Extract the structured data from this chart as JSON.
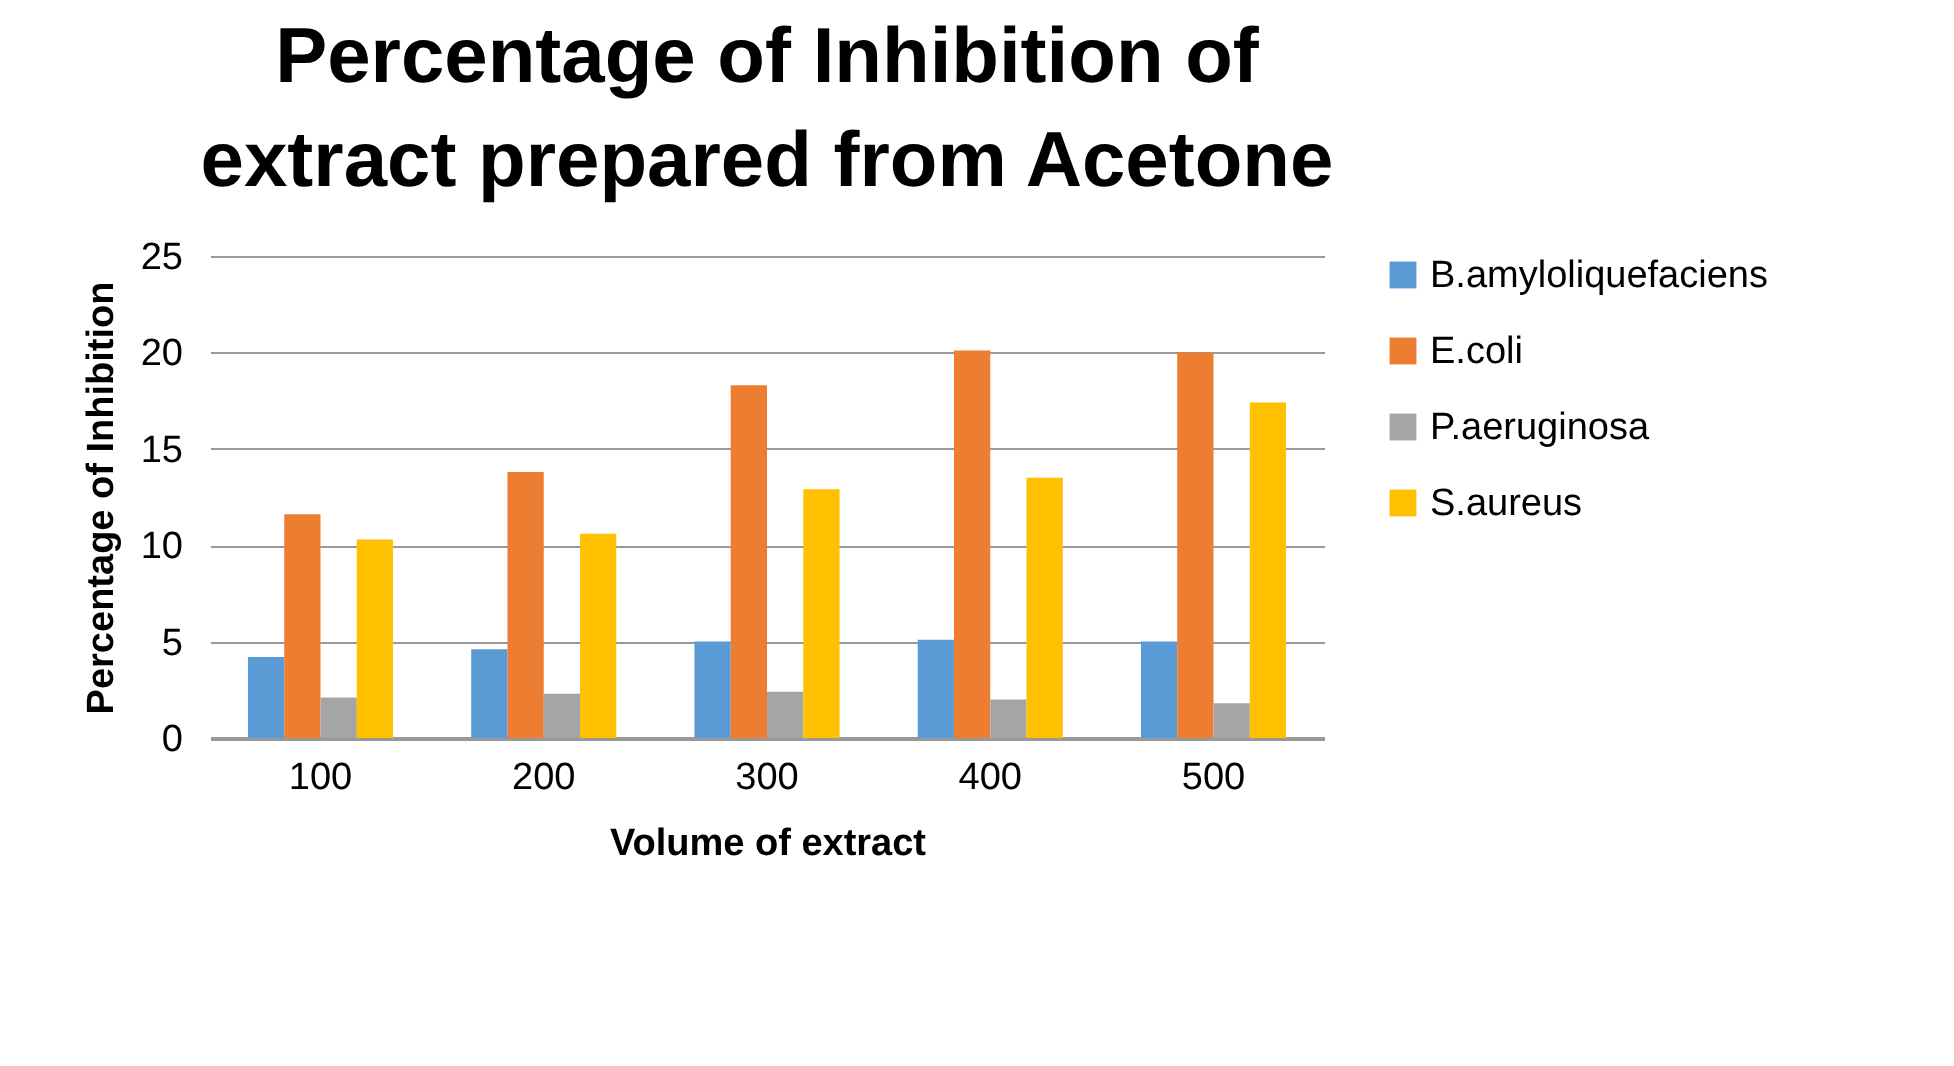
{
  "chart_data": {
    "type": "bar",
    "title": "Percentage of Inhibition of extract prepared from Acetone",
    "xlabel": "Volume of extract",
    "ylabel": "Percentage of Inhibition",
    "categories": [
      "100",
      "200",
      "300",
      "400",
      "500"
    ],
    "series": [
      {
        "name": "B.amyloliquefaciens",
        "color": "#5b9bd5",
        "values": [
          4.2,
          4.6,
          5.0,
          5.1,
          5.0
        ]
      },
      {
        "name": "E.coli",
        "color": "#ed7d31",
        "values": [
          11.6,
          13.8,
          18.3,
          20.1,
          20.0
        ]
      },
      {
        "name": "P.aeruginosa",
        "color": "#a5a5a5",
        "values": [
          2.1,
          2.3,
          2.4,
          2.0,
          1.8
        ]
      },
      {
        "name": "S.aureus",
        "color": "#ffc000",
        "values": [
          10.3,
          10.6,
          12.9,
          13.5,
          17.4
        ]
      }
    ],
    "ylim": [
      0,
      25
    ],
    "yticks": [
      0,
      5,
      10,
      15,
      20,
      25
    ],
    "grid": "y",
    "legend": "right"
  }
}
